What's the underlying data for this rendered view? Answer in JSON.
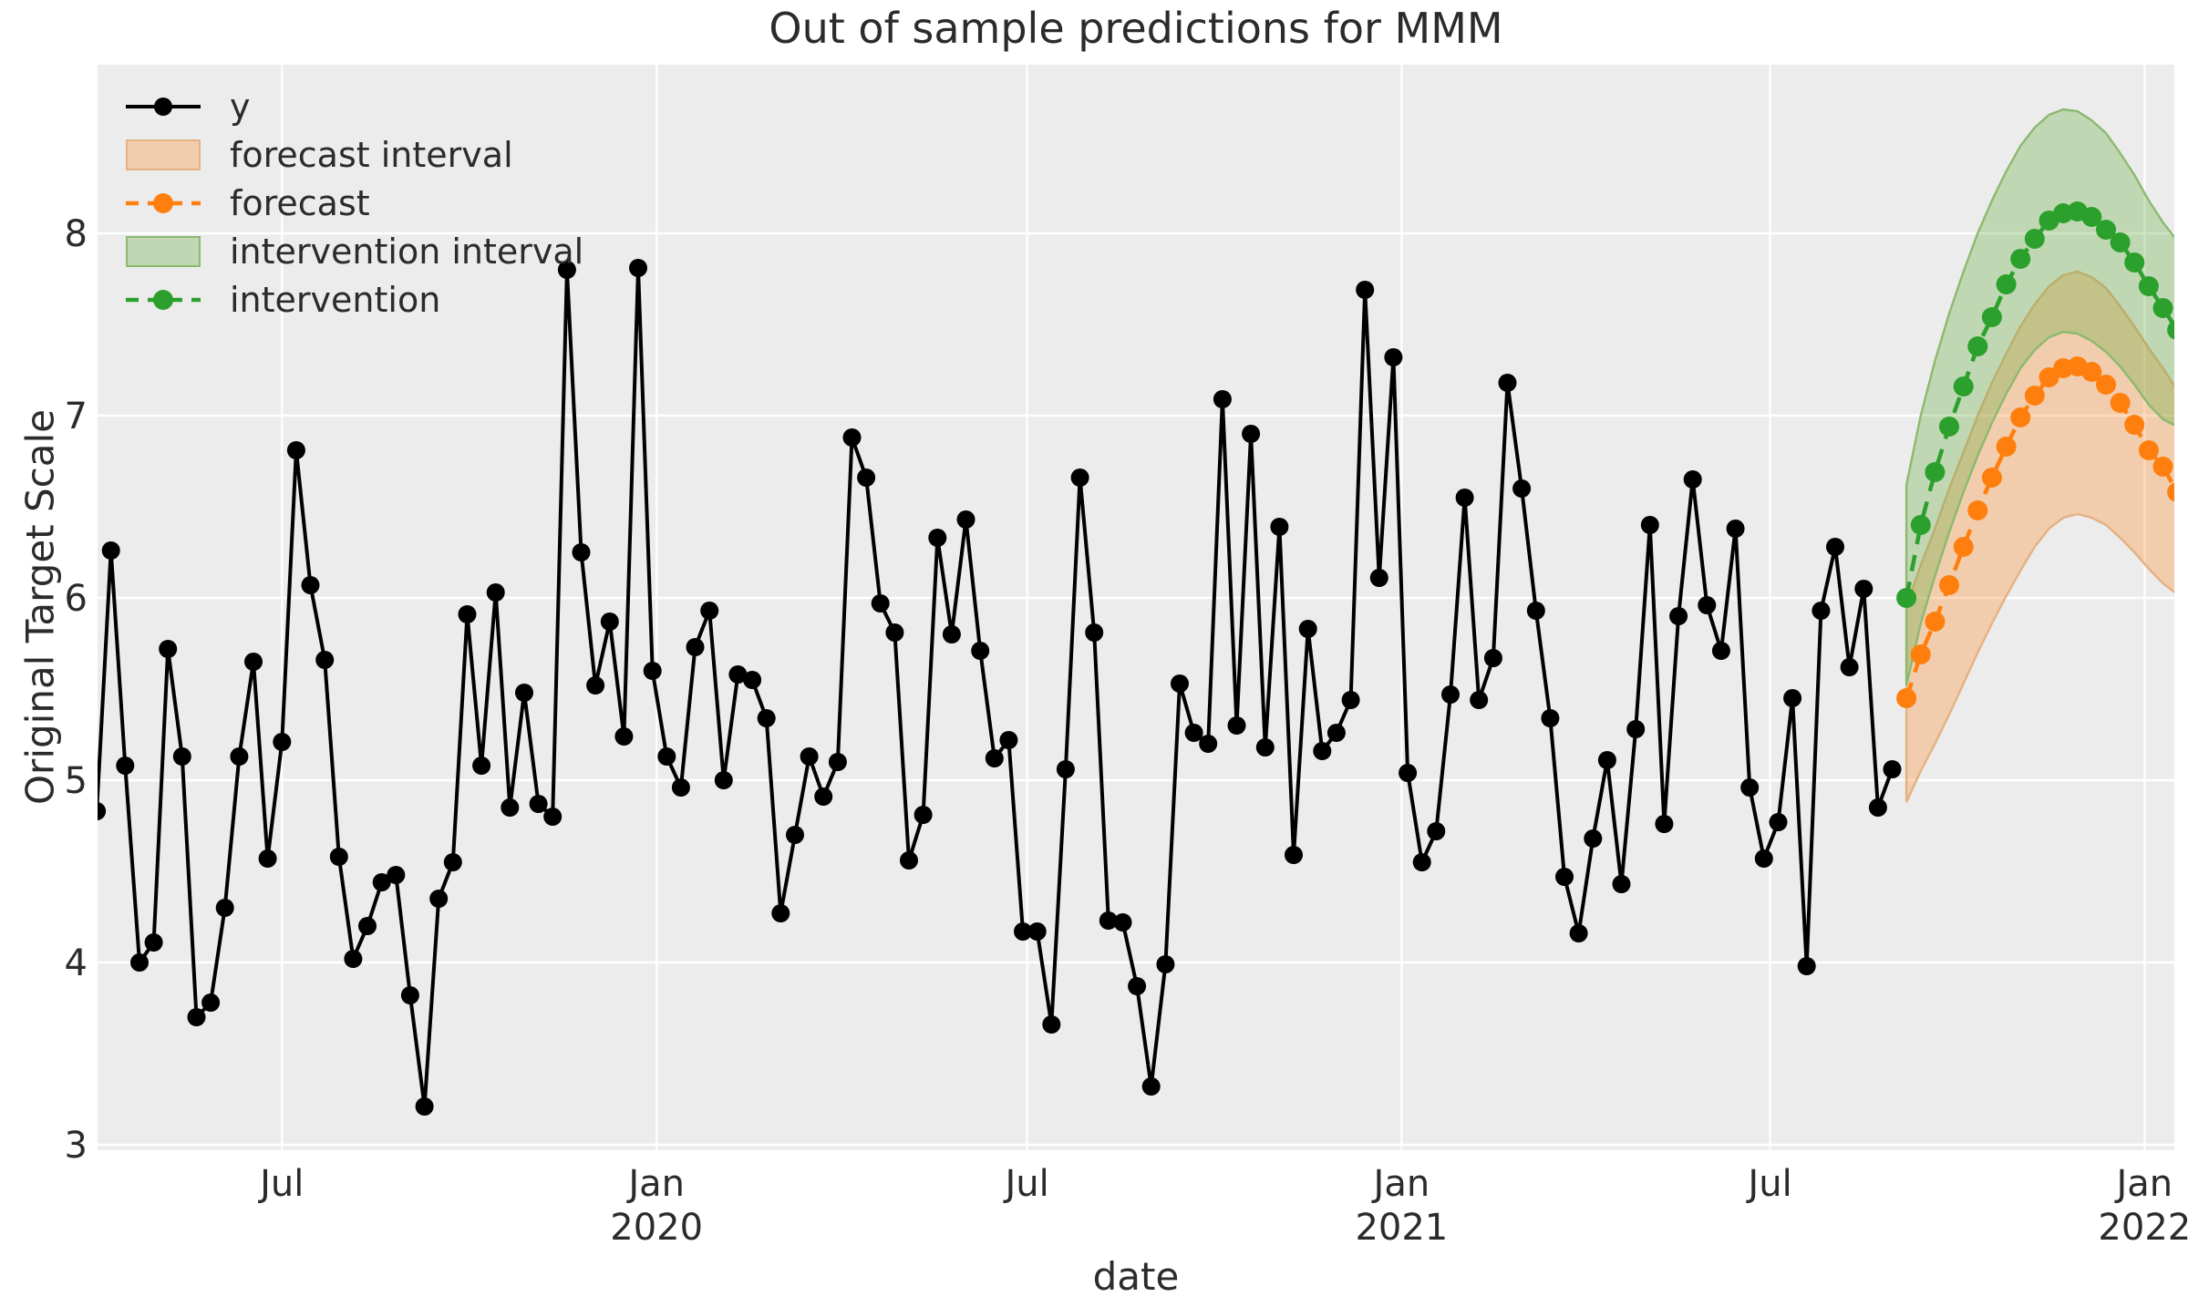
{
  "title": "Out of sample predictions for MMM",
  "axes": {
    "xlabel": "date",
    "ylabel": "Original Target Scale"
  },
  "legend": {
    "items": [
      {
        "label": "y",
        "type": "line-marker",
        "color": "#000000"
      },
      {
        "label": "forecast interval",
        "type": "band",
        "fill": "rgba(255,127,14,0.28)",
        "edge": "#e4b183"
      },
      {
        "label": "forecast",
        "type": "dashed-marker",
        "color": "#ff7f0e"
      },
      {
        "label": "intervention interval",
        "type": "band",
        "fill": "rgba(100,170,60,0.32)",
        "edge": "#8cb96f"
      },
      {
        "label": "intervention",
        "type": "dashed-marker",
        "color": "#2ca02c"
      }
    ]
  },
  "chart_data": {
    "type": "line",
    "title": "Out of sample predictions for MMM",
    "xlabel": "date",
    "ylabel": "Original Target Scale",
    "background": "#ececec",
    "grid_color": "#ffffff",
    "grid": true,
    "legend_position": "upper-left",
    "x_axis": {
      "unit": "weeks (weekly observations)",
      "ticks": [
        {
          "week": 13.0,
          "label": "Jul",
          "year": ""
        },
        {
          "week": 39.29,
          "label": "Jan",
          "year": "2020"
        },
        {
          "week": 65.29,
          "label": "Jul",
          "year": ""
        },
        {
          "week": 91.57,
          "label": "Jan",
          "year": "2021"
        },
        {
          "week": 117.43,
          "label": "Jul",
          "year": ""
        },
        {
          "week": 143.71,
          "label": "Jan",
          "year": "2022"
        }
      ],
      "xlim_weeks": [
        0.06,
        145.8
      ]
    },
    "y_axis": {
      "ticks": [
        3,
        4,
        5,
        6,
        7,
        8
      ],
      "ylim": [
        2.97,
        8.925
      ]
    },
    "series": [
      {
        "name": "y",
        "color": "#000000",
        "style": "solid",
        "marker": "circle",
        "start_week": 0,
        "values": [
          4.83,
          6.26,
          5.08,
          4.0,
          4.11,
          5.72,
          5.13,
          3.7,
          3.78,
          4.3,
          5.13,
          5.65,
          4.57,
          5.21,
          6.81,
          6.07,
          5.66,
          4.58,
          4.02,
          4.2,
          4.44,
          4.48,
          3.82,
          3.21,
          4.35,
          4.55,
          5.91,
          5.08,
          6.03,
          4.85,
          5.48,
          4.87,
          4.8,
          7.8,
          6.25,
          5.52,
          5.87,
          5.24,
          7.81,
          5.6,
          5.13,
          4.96,
          5.73,
          5.93,
          5.0,
          5.58,
          5.55,
          5.34,
          4.27,
          4.7,
          5.13,
          4.91,
          5.1,
          6.88,
          6.66,
          5.97,
          5.81,
          4.56,
          4.81,
          6.33,
          5.8,
          6.43,
          5.71,
          5.12,
          5.22,
          4.17,
          4.17,
          3.66,
          5.06,
          6.66,
          5.81,
          4.23,
          4.22,
          3.87,
          3.32,
          3.99,
          5.53,
          5.26,
          5.2,
          7.09,
          5.3,
          6.9,
          5.18,
          6.39,
          4.59,
          5.83,
          5.16,
          5.26,
          5.44,
          7.69,
          6.11,
          7.32,
          5.04,
          4.55,
          4.72,
          5.47,
          6.55,
          5.44,
          5.67,
          7.18,
          6.6,
          5.93,
          5.34,
          4.47,
          4.16,
          4.68,
          5.11,
          4.43,
          5.28,
          6.4,
          4.76,
          5.9,
          6.65,
          5.96,
          5.71,
          6.38,
          4.96,
          4.57,
          4.77,
          5.45,
          3.98,
          5.93,
          6.28,
          5.62,
          6.05,
          4.85,
          5.06
        ]
      },
      {
        "name": "forecast",
        "color": "#ff7f0e",
        "style": "dashed",
        "marker": "circle",
        "start_week": 127,
        "values": [
          5.45,
          5.69,
          5.87,
          6.07,
          6.28,
          6.48,
          6.66,
          6.83,
          6.99,
          7.11,
          7.21,
          7.26,
          7.27,
          7.24,
          7.17,
          7.07,
          6.95,
          6.81,
          6.72,
          6.58,
          6.55
        ]
      },
      {
        "name": "intervention",
        "color": "#2ca02c",
        "style": "dashed",
        "marker": "circle",
        "start_week": 127,
        "values": [
          6.0,
          6.4,
          6.69,
          6.94,
          7.16,
          7.38,
          7.54,
          7.72,
          7.86,
          7.97,
          8.07,
          8.11,
          8.12,
          8.09,
          8.02,
          7.95,
          7.84,
          7.71,
          7.59,
          7.47,
          7.43
        ]
      }
    ],
    "bands": [
      {
        "name": "forecast interval",
        "fill": "rgba(255,127,14,0.28)",
        "edge": "#e4b183",
        "start_week": 127,
        "lower": [
          4.88,
          5.05,
          5.2,
          5.36,
          5.53,
          5.7,
          5.86,
          6.01,
          6.15,
          6.28,
          6.38,
          6.44,
          6.46,
          6.44,
          6.4,
          6.33,
          6.25,
          6.16,
          6.08,
          6.02,
          6.06
        ],
        "upper": [
          5.95,
          6.18,
          6.38,
          6.6,
          6.8,
          7.0,
          7.18,
          7.34,
          7.49,
          7.61,
          7.71,
          7.77,
          7.79,
          7.76,
          7.7,
          7.6,
          7.49,
          7.37,
          7.26,
          7.14,
          7.1
        ]
      },
      {
        "name": "intervention interval",
        "fill": "rgba(100,170,60,0.32)",
        "edge": "#8cb96f",
        "start_week": 127,
        "lower": [
          5.52,
          5.86,
          6.12,
          6.36,
          6.58,
          6.78,
          6.96,
          7.12,
          7.26,
          7.36,
          7.43,
          7.46,
          7.45,
          7.41,
          7.35,
          7.27,
          7.17,
          7.06,
          6.98,
          6.94,
          6.95
        ],
        "upper": [
          6.62,
          7.0,
          7.3,
          7.56,
          7.79,
          8.0,
          8.18,
          8.34,
          8.48,
          8.58,
          8.65,
          8.68,
          8.67,
          8.62,
          8.55,
          8.44,
          8.32,
          8.18,
          8.06,
          7.96,
          7.98
        ]
      }
    ]
  }
}
